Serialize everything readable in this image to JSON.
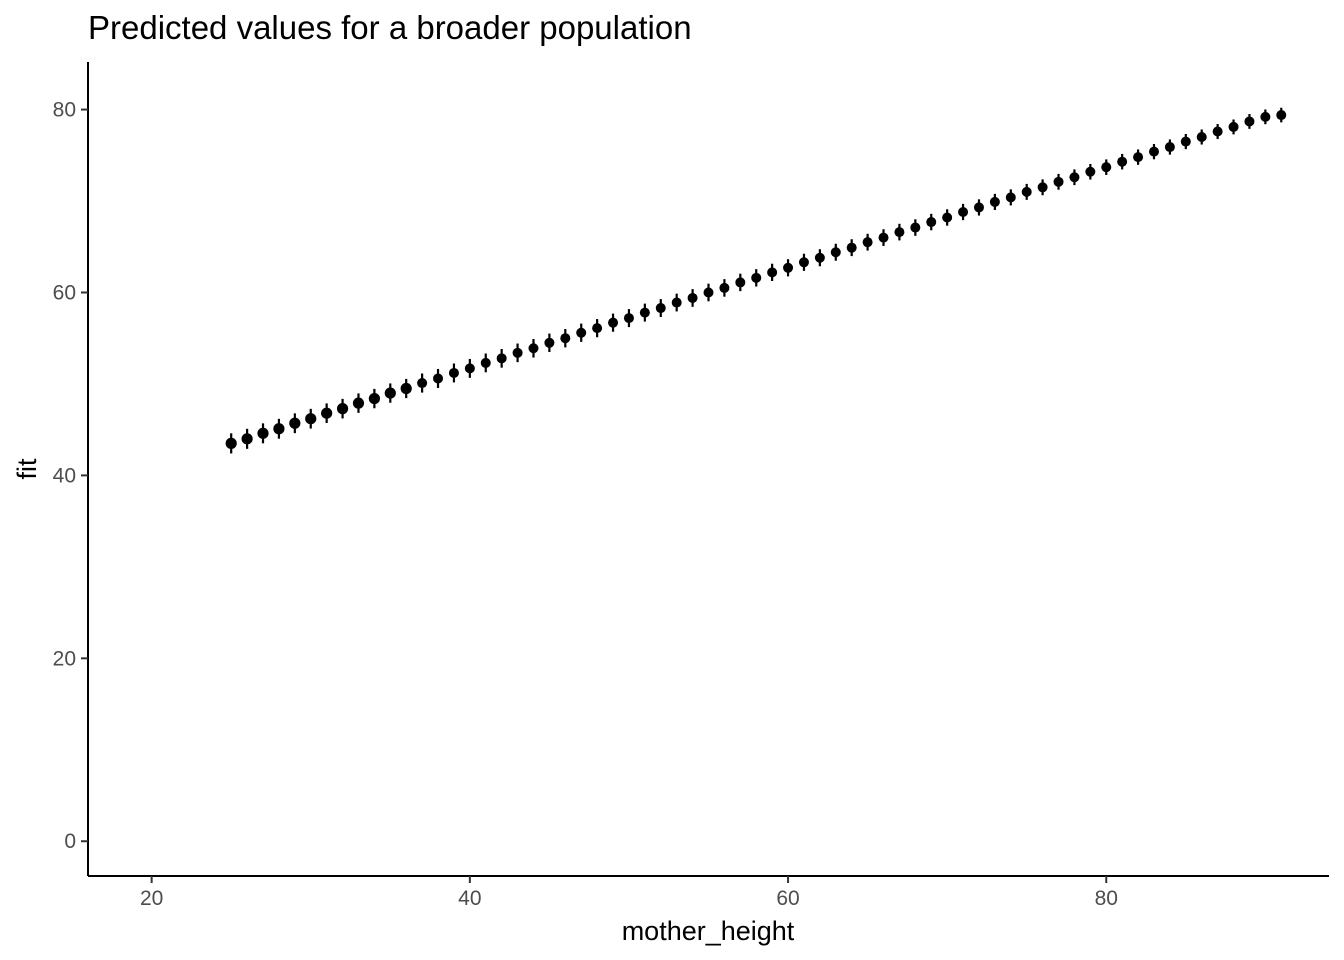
{
  "chart_data": {
    "type": "scatter",
    "title": "Predicted values for a broader population",
    "xlabel": "mother_height",
    "ylabel": "fit",
    "xlim": [
      16,
      94
    ],
    "ylim": [
      -3.8,
      85.2
    ],
    "x_ticks": [
      20,
      40,
      60,
      80
    ],
    "y_ticks": [
      0,
      20,
      40,
      60,
      80
    ],
    "grid": false,
    "legend": "none",
    "error_bars": true,
    "point_color": "#000000",
    "x": [
      25,
      26,
      27,
      28,
      29,
      30,
      31,
      32,
      33,
      34,
      35,
      36,
      37,
      38,
      39,
      40,
      41,
      42,
      43,
      44,
      45,
      46,
      47,
      48,
      49,
      50,
      51,
      52,
      53,
      54,
      55,
      56,
      57,
      58,
      59,
      60,
      61,
      62,
      63,
      64,
      65,
      66,
      67,
      68,
      69,
      70,
      71,
      72,
      73,
      74,
      75,
      76,
      77,
      78,
      79,
      80,
      81,
      82,
      83,
      84,
      85,
      86,
      87,
      88,
      89,
      90,
      91
    ],
    "y": [
      43.5,
      44.0,
      44.6,
      45.1,
      45.7,
      46.2,
      46.8,
      47.3,
      47.9,
      48.4,
      49.0,
      49.5,
      50.1,
      50.6,
      51.2,
      51.7,
      52.3,
      52.8,
      53.4,
      53.9,
      54.5,
      55.0,
      55.6,
      56.1,
      56.7,
      57.2,
      57.8,
      58.3,
      58.9,
      59.4,
      60.0,
      60.5,
      61.1,
      61.6,
      62.2,
      62.7,
      63.3,
      63.8,
      64.4,
      64.9,
      65.5,
      66.0,
      66.6,
      67.1,
      67.7,
      68.2,
      68.8,
      69.3,
      69.9,
      70.4,
      71.0,
      71.5,
      72.1,
      72.6,
      73.2,
      73.7,
      74.3,
      74.8,
      75.4,
      75.9,
      76.5,
      77.0,
      77.6,
      78.1,
      78.7,
      79.2,
      79.4
    ],
    "ci_halfwidth_first": 1.1,
    "ci_halfwidth_last": 0.8
  }
}
